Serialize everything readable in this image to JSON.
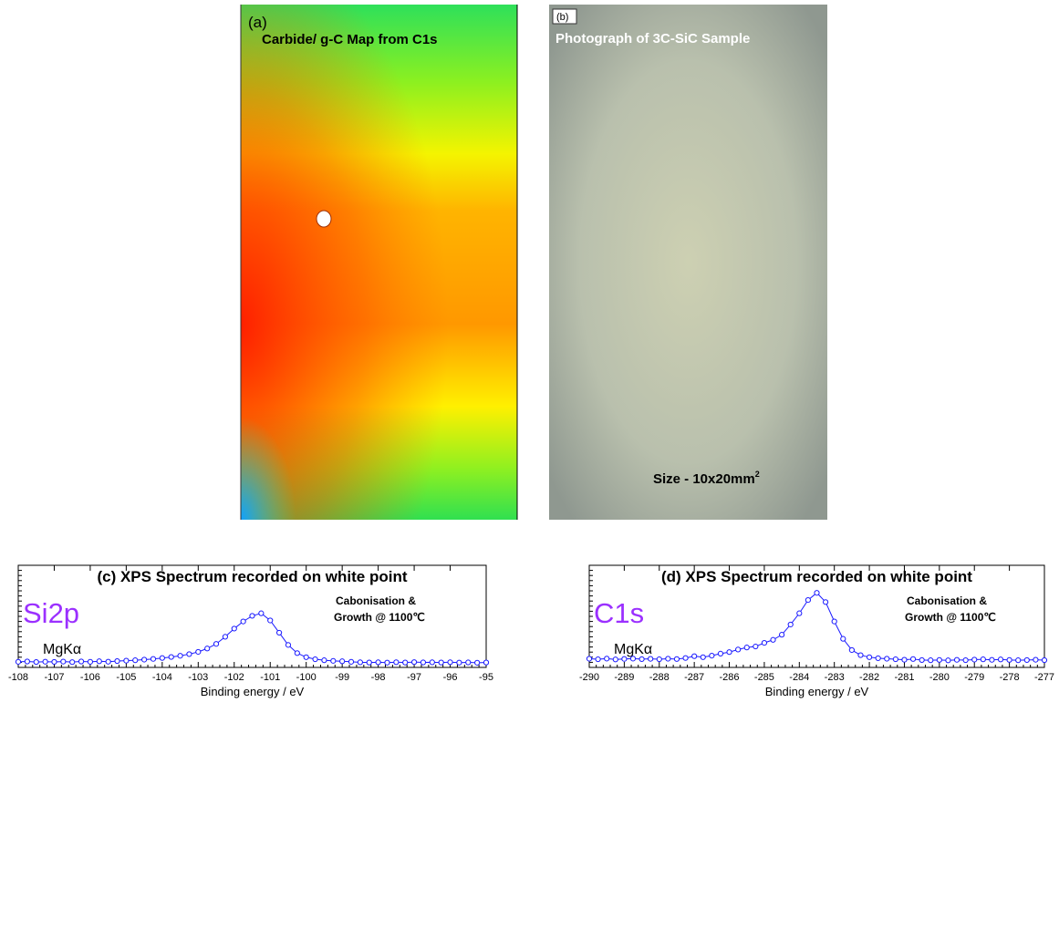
{
  "panels": {
    "a": {
      "label": "(a)",
      "title": "Carbide/ g-C Map from C1s"
    },
    "b": {
      "label": "(b)",
      "title": "Photograph of 3C-SiC Sample",
      "size": "Size  - 10x20mm",
      "size_sup": "2"
    }
  },
  "chart_data": [
    {
      "type": "line",
      "title": "(c)  XPS Spectrum recorded on white point",
      "label": "Si2p",
      "label_color": "#9b30ff",
      "excitation": "MgKα",
      "note": [
        "Cabonisation &",
        "Growth @ 1100℃"
      ],
      "xlabel": "Binding energy / eV",
      "color": "#1a1aff",
      "xlim": [
        -108,
        -95
      ],
      "xticks": [
        -108,
        -107,
        -106,
        -105,
        -104,
        -103,
        -102,
        -101,
        -100,
        -99,
        -98,
        -97,
        -96,
        -95
      ],
      "ylim": [
        0,
        100
      ],
      "x": [
        -108,
        -107.75,
        -107.5,
        -107.25,
        -107,
        -106.75,
        -106.5,
        -106.25,
        -106,
        -105.75,
        -105.5,
        -105.25,
        -105,
        -104.75,
        -104.5,
        -104.25,
        -104,
        -103.75,
        -103.5,
        -103.25,
        -103,
        -102.75,
        -102.5,
        -102.25,
        -102,
        -101.75,
        -101.5,
        -101.25,
        -101,
        -100.75,
        -100.5,
        -100.25,
        -100,
        -99.75,
        -99.5,
        -99.25,
        -99,
        -98.75,
        -98.5,
        -98.25,
        -98,
        -97.75,
        -97.5,
        -97.25,
        -97,
        -96.75,
        -96.5,
        -96.25,
        -96,
        -95.75,
        -95.5,
        -95.25,
        -95
      ],
      "values": [
        5.5,
        5.8,
        5.3,
        5.6,
        5.4,
        5.7,
        5.2,
        5.8,
        5.5,
        6.0,
        5.6,
        6.2,
        6.6,
        7.0,
        7.6,
        8.3,
        9.2,
        10.2,
        11.4,
        13.0,
        15.2,
        18.5,
        23,
        30,
        38,
        45,
        50.5,
        53,
        46,
        34,
        22,
        14,
        10,
        8,
        7,
        6.4,
        6.0,
        5.5,
        5.0,
        4.8,
        5.0,
        4.7,
        5.1,
        4.8,
        5.2,
        4.9,
        5.0,
        4.8,
        5.1,
        4.7,
        4.9,
        4.6,
        4.8
      ]
    },
    {
      "type": "line",
      "title": "(d)  XPS Spectrum recorded on white point",
      "label": "C1s",
      "label_color": "#9b30ff",
      "excitation": "MgKα",
      "note": [
        "Cabonisation &",
        "Growth @ 1100℃"
      ],
      "xlabel": "Binding energy / eV",
      "color": "#1a1aff",
      "xlim": [
        -290,
        -277
      ],
      "xticks": [
        -290,
        -289,
        -288,
        -287,
        -286,
        -285,
        -284,
        -283,
        -282,
        -281,
        -280,
        -279,
        -278,
        -277
      ],
      "ylim": [
        0,
        100
      ],
      "x": [
        -290,
        -289.75,
        -289.5,
        -289.25,
        -289,
        -288.75,
        -288.5,
        -288.25,
        -288,
        -287.75,
        -287.5,
        -287.25,
        -287,
        -286.75,
        -286.5,
        -286.25,
        -286,
        -285.75,
        -285.5,
        -285.25,
        -285,
        -284.75,
        -284.5,
        -284.25,
        -284,
        -283.75,
        -283.5,
        -283.25,
        -283,
        -282.75,
        -282.5,
        -282.25,
        -282,
        -281.75,
        -281.5,
        -281.25,
        -281,
        -280.75,
        -280.5,
        -280.25,
        -280,
        -279.75,
        -279.5,
        -279.25,
        -279,
        -278.75,
        -278.5,
        -278.25,
        -278,
        -277.75,
        -277.5,
        -277.25,
        -277
      ],
      "values": [
        8.5,
        8,
        8.6,
        7.8,
        8.3,
        8.6,
        8.1,
        8.4,
        8.0,
        8.5,
        8.2,
        9.2,
        11,
        10,
        11.5,
        13.5,
        15,
        17.5,
        19.5,
        20.5,
        24,
        27,
        32,
        42,
        53,
        66,
        73,
        64,
        45,
        28,
        17,
        12,
        10,
        9,
        8.5,
        8,
        7.5,
        8.2,
        7.2,
        7.0,
        7.3,
        6.9,
        7.4,
        7.1,
        7.6,
        7.9,
        7.4,
        7.8,
        7.3,
        7.0,
        7.2,
        7.5,
        7.1
      ]
    }
  ]
}
